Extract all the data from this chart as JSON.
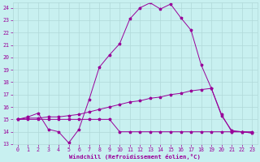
{
  "xlabel": "Windchill (Refroidissement éolien,°C)",
  "background_color": "#c8f0f0",
  "grid_color": "#b0d8d8",
  "line_color": "#990099",
  "xlim_min": -0.5,
  "xlim_max": 23.5,
  "ylim_min": 13,
  "ylim_max": 24.4,
  "xticks": [
    0,
    1,
    2,
    3,
    4,
    5,
    6,
    7,
    8,
    9,
    10,
    11,
    12,
    13,
    14,
    15,
    16,
    17,
    18,
    19,
    20,
    21,
    22,
    23
  ],
  "yticks": [
    13,
    14,
    15,
    16,
    17,
    18,
    19,
    20,
    21,
    22,
    23,
    24
  ],
  "series1_x": [
    0,
    1,
    2,
    3,
    4,
    5,
    6,
    7,
    8,
    9,
    10,
    11,
    12,
    13,
    14,
    15,
    16,
    17,
    18,
    19,
    20,
    21,
    22,
    23
  ],
  "series1_y": [
    15.0,
    15.2,
    15.5,
    14.2,
    14.0,
    13.1,
    14.2,
    16.6,
    19.2,
    20.2,
    21.1,
    23.1,
    24.0,
    24.4,
    23.9,
    24.3,
    23.2,
    22.2,
    19.4,
    17.5,
    15.4,
    14.0,
    14.0,
    13.9
  ],
  "series2_x": [
    0,
    1,
    2,
    3,
    4,
    5,
    6,
    7,
    8,
    9,
    10,
    11,
    12,
    13,
    14,
    15,
    16,
    17,
    18,
    19,
    20,
    21,
    22,
    23
  ],
  "series2_y": [
    15.0,
    15.1,
    15.1,
    15.2,
    15.2,
    15.3,
    15.4,
    15.6,
    15.8,
    16.0,
    16.2,
    16.4,
    16.5,
    16.7,
    16.8,
    17.0,
    17.1,
    17.3,
    17.4,
    17.5,
    15.3,
    14.1,
    14.0,
    14.0
  ],
  "series3_x": [
    0,
    1,
    2,
    3,
    4,
    5,
    6,
    7,
    8,
    9,
    10,
    11,
    12,
    13,
    14,
    15,
    16,
    17,
    18,
    19,
    20,
    21,
    22,
    23
  ],
  "series3_y": [
    15.0,
    15.0,
    15.0,
    15.0,
    15.0,
    15.0,
    15.0,
    15.0,
    15.0,
    15.0,
    14.0,
    14.0,
    14.0,
    14.0,
    14.0,
    14.0,
    14.0,
    14.0,
    14.0,
    14.0,
    14.0,
    14.0,
    14.0,
    13.9
  ],
  "marker_size": 2.5,
  "line_width": 0.7,
  "tick_fontsize": 4.8,
  "xlabel_fontsize": 5.2
}
